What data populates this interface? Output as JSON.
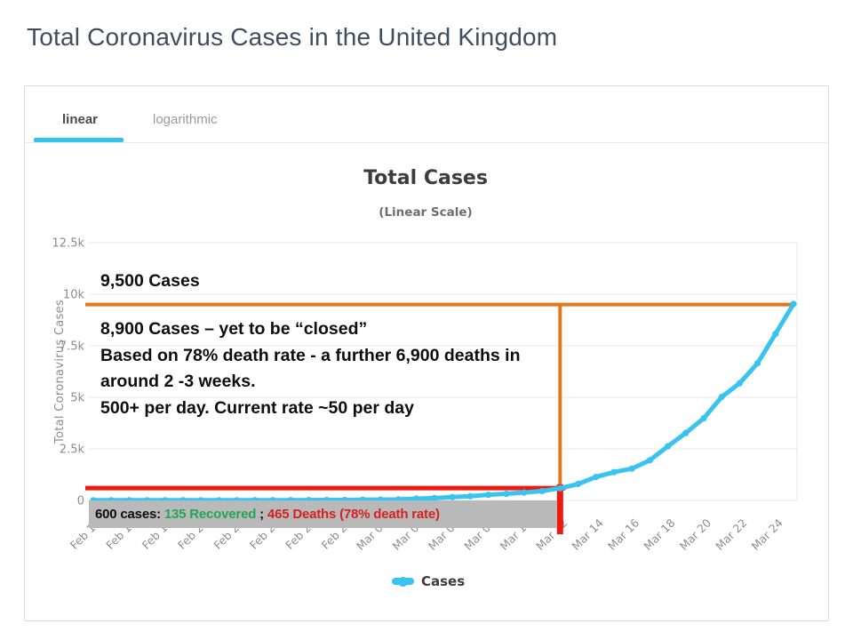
{
  "page": {
    "title": "Total Coronavirus Cases in the United Kingdom"
  },
  "tabs": [
    {
      "label": "linear",
      "active": true
    },
    {
      "label": "logarithmic",
      "active": false
    }
  ],
  "chart": {
    "title": "Total Cases",
    "subtitle": "(Linear Scale)",
    "y_axis_label": "Total Coronavirus Cases",
    "legend_label": "Cases"
  },
  "annotations": {
    "peak": "9,500 Cases",
    "block_lines": [
      "8,900 Cases – yet to be “closed”",
      "Based on 78% death rate -  a further 6,900 deaths in",
      "around 2 -3 weeks.",
      "500+ per day. Current rate ~50 per day"
    ],
    "callout": {
      "prefix": "600 cases: ",
      "recovered": "135 Recovered",
      "separator": " ; ",
      "deaths": "465 Deaths (78% death rate)"
    }
  },
  "colors": {
    "accent_cyan": "#2fc3ee",
    "series_blue": "#38c3f0",
    "annotation_orange": "#e2771d",
    "annotation_red": "#ee1a10",
    "callout_green": "#21a657",
    "callout_red": "#d61f1f",
    "callout_bg": "#b9b9b9"
  },
  "chart_data": {
    "type": "line",
    "title": "Total Cases",
    "subtitle": "(Linear Scale)",
    "xlabel": "",
    "ylabel": "Total Coronavirus Cases",
    "ylim": [
      0,
      12500
    ],
    "grid": "horizontal",
    "legend_position": "bottom",
    "y_ticks": [
      {
        "value": 12500,
        "label": "12.5k"
      },
      {
        "value": 10000,
        "label": "10k"
      },
      {
        "value": 7500,
        "label": "7.5k"
      },
      {
        "value": 5000,
        "label": "5k"
      },
      {
        "value": 2500,
        "label": "2.5k"
      },
      {
        "value": 0,
        "label": "0"
      }
    ],
    "x_tick_labels": [
      "Feb 15",
      "Feb 17",
      "Feb 19",
      "Feb 21",
      "Feb 23",
      "Feb 25",
      "Feb 27",
      "Feb 29",
      "Mar 02",
      "Mar 04",
      "Mar 06",
      "Mar 08",
      "Mar 10",
      "Mar 12",
      "Mar 14",
      "Mar 16",
      "Mar 18",
      "Mar 20",
      "Mar 22",
      "Mar 24"
    ],
    "series": [
      {
        "name": "Cases",
        "color": "#38c3f0",
        "x": [
          "Feb 15",
          "Feb 16",
          "Feb 17",
          "Feb 18",
          "Feb 19",
          "Feb 20",
          "Feb 21",
          "Feb 22",
          "Feb 23",
          "Feb 24",
          "Feb 25",
          "Feb 26",
          "Feb 27",
          "Feb 28",
          "Feb 29",
          "Mar 01",
          "Mar 02",
          "Mar 03",
          "Mar 04",
          "Mar 05",
          "Mar 06",
          "Mar 07",
          "Mar 08",
          "Mar 09",
          "Mar 10",
          "Mar 11",
          "Mar 12",
          "Mar 13",
          "Mar 14",
          "Mar 15",
          "Mar 16",
          "Mar 17",
          "Mar 18",
          "Mar 19",
          "Mar 20",
          "Mar 21",
          "Mar 22",
          "Mar 23",
          "Mar 24",
          "Mar 25"
        ],
        "values": [
          9,
          9,
          9,
          9,
          9,
          9,
          9,
          9,
          9,
          13,
          13,
          13,
          15,
          20,
          23,
          36,
          40,
          51,
          85,
          115,
          163,
          206,
          273,
          321,
          382,
          456,
          590,
          797,
          1140,
          1372,
          1543,
          1950,
          2626,
          3269,
          3983,
          5018,
          5683,
          6650,
          8077,
          9529
        ]
      }
    ],
    "reference_lines": [
      {
        "orientation": "horizontal",
        "value": 9500,
        "color": "#e2771d",
        "width": 4
      },
      {
        "orientation": "vertical",
        "at": "Mar 12",
        "from": 9500,
        "color": "#e2771d",
        "width": 4
      },
      {
        "orientation": "horizontal",
        "value": 600,
        "to_x": "Mar 12",
        "color": "#ee1a10",
        "width": 5
      },
      {
        "orientation": "vertical",
        "at": "Mar 12",
        "from": 780,
        "color": "#ee1a10",
        "width": 7
      }
    ]
  }
}
